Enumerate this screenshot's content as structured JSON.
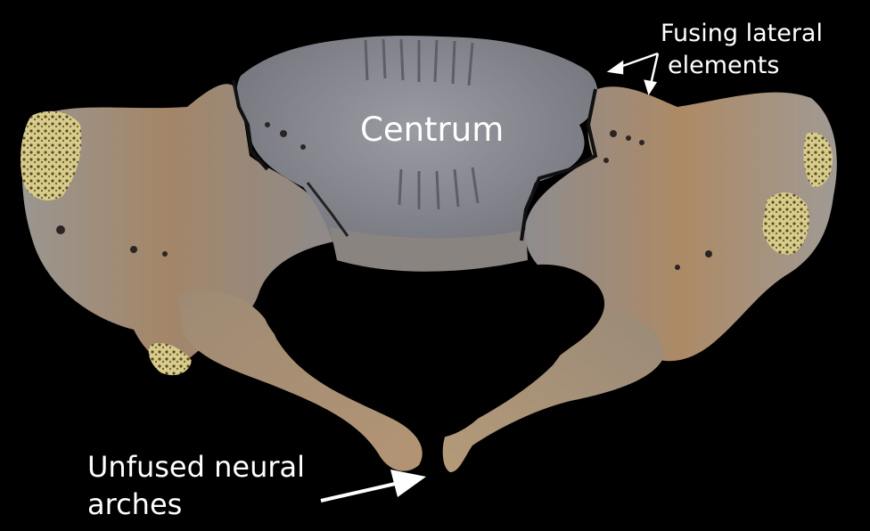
{
  "labels": {
    "centrum": "Centrum",
    "fusing_lateral_line1": "Fusing lateral",
    "fusing_lateral_line2": "elements",
    "unfused_line1": "Unfused neural",
    "unfused_line2": "arches"
  },
  "colors": {
    "background": "#000000",
    "bone_gray": "#8b8c93",
    "bone_tan": "#a88866",
    "cancellous_yellow": "#d8cc8a",
    "label_text": "#ffffff"
  }
}
